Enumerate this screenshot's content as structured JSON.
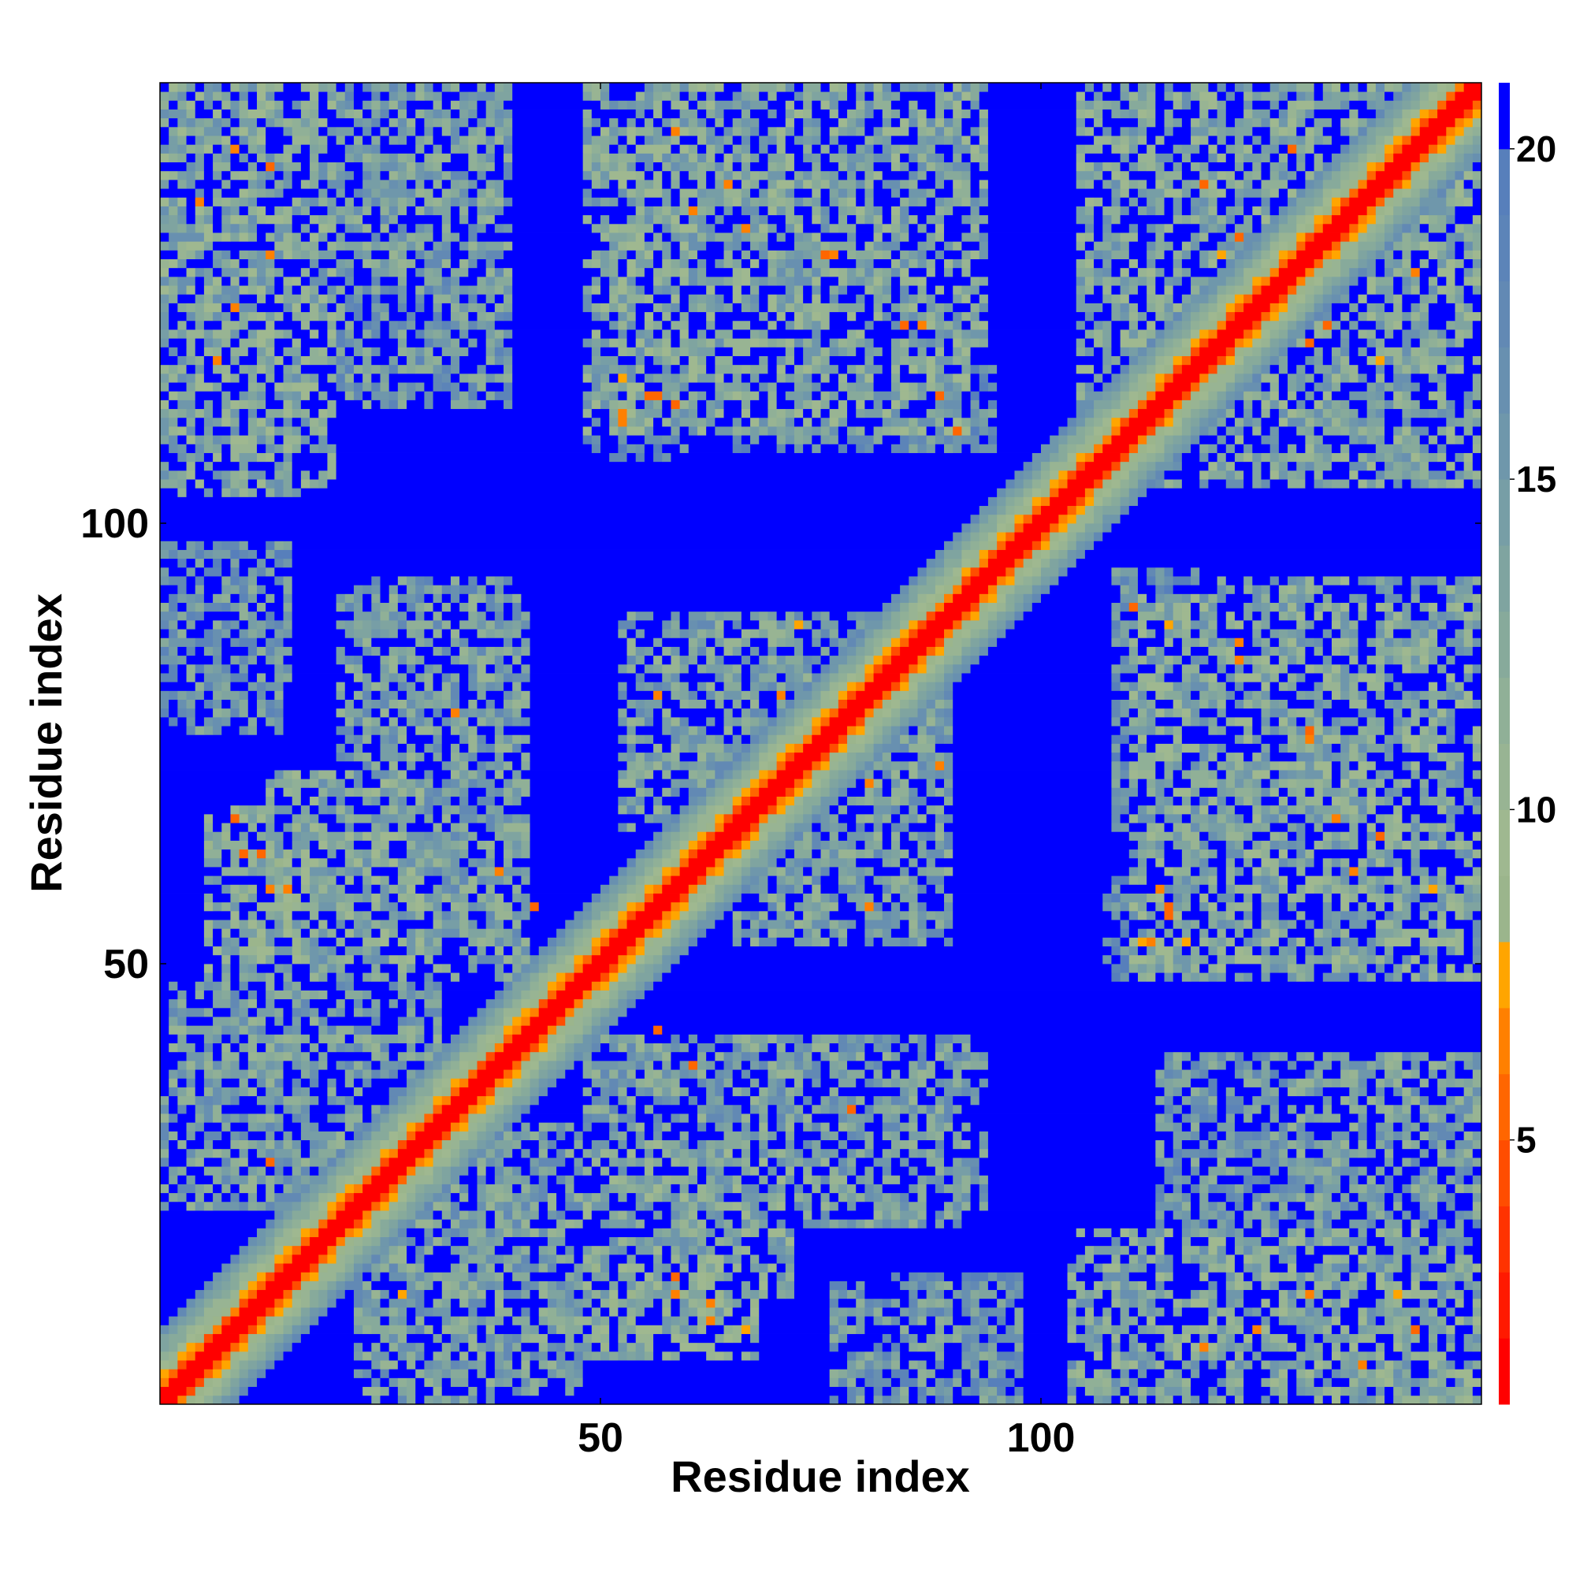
{
  "chart_data": {
    "type": "heatmap",
    "title": "",
    "xlabel": "Residue index",
    "ylabel": "Residue index",
    "n_residues": 150,
    "xlim": [
      0,
      150
    ],
    "ylim": [
      0,
      150
    ],
    "x_ticks": [
      50,
      100
    ],
    "y_ticks": [
      50,
      100
    ],
    "grid": false,
    "value_description": "pairwise residue distance",
    "color_range": [
      1,
      21
    ],
    "colorbar": {
      "ticks": [
        5,
        10,
        15,
        20
      ],
      "position": "right",
      "colors": [
        {
          "max": 2,
          "color": "#ff0000"
        },
        {
          "max": 3,
          "color": "#ff1a00"
        },
        {
          "max": 4,
          "color": "#ff3300"
        },
        {
          "max": 5,
          "color": "#ff4d00"
        },
        {
          "max": 6,
          "color": "#ff6600"
        },
        {
          "max": 7,
          "color": "#ff8000"
        },
        {
          "max": 8,
          "color": "#ffa500"
        },
        {
          "max": 9,
          "color": "#9bb58c"
        },
        {
          "max": 10,
          "color": "#9fb890"
        },
        {
          "max": 11,
          "color": "#98b493"
        },
        {
          "max": 12,
          "color": "#90b097"
        },
        {
          "max": 13,
          "color": "#87aa9b"
        },
        {
          "max": 14,
          "color": "#7fa4a0"
        },
        {
          "max": 15,
          "color": "#779ea6"
        },
        {
          "max": 16,
          "color": "#6f97ab"
        },
        {
          "max": 17,
          "color": "#6890b0"
        },
        {
          "max": 18,
          "color": "#6289b4"
        },
        {
          "max": 19,
          "color": "#5c84b8"
        },
        {
          "max": 20,
          "color": "#577fbb"
        },
        {
          "max": 99,
          "color": "#0000ff"
        }
      ]
    },
    "contact_regions": [
      {
        "x": [
          0,
          16
        ],
        "y": [
          103,
          150
        ],
        "level": 13
      },
      {
        "x": [
          20,
          40
        ],
        "y": [
          113,
          150
        ],
        "level": 14
      },
      {
        "x": [
          48,
          94
        ],
        "y": [
          120,
          150
        ],
        "level": 12
      },
      {
        "x": [
          50,
          58
        ],
        "y": [
          107,
          115
        ],
        "level": 16
      },
      {
        "x": [
          65,
          95
        ],
        "y": [
          108,
          118
        ],
        "level": 15
      },
      {
        "x": [
          0,
          15
        ],
        "y": [
          82,
          98
        ],
        "level": 15
      },
      {
        "x": [
          5,
          16
        ],
        "y": [
          48,
          68
        ],
        "level": 11
      },
      {
        "x": [
          20,
          42
        ],
        "y": [
          48,
          92
        ],
        "level": 13
      },
      {
        "x": [
          52,
          88
        ],
        "y": [
          65,
          90
        ],
        "level": 13
      },
      {
        "x": [
          0,
          25
        ],
        "y": [
          22,
          38
        ],
        "level": 13
      },
      {
        "x": [
          24,
          48
        ],
        "y": [
          1,
          32
        ],
        "level": 13
      },
      {
        "x": [
          48,
          72
        ],
        "y": [
          12,
          30
        ],
        "level": 12
      },
      {
        "x": [
          70,
          94
        ],
        "y": [
          22,
          40
        ],
        "level": 14
      },
      {
        "x": [
          48,
          68
        ],
        "y": [
          5,
          15
        ],
        "level": 11
      },
      {
        "x": [
          76,
          94
        ],
        "y": [
          0,
          14
        ],
        "level": 14
      },
      {
        "x": [
          104,
          150
        ],
        "y": [
          105,
          150
        ],
        "level": 12
      },
      {
        "x": [
          110,
          150
        ],
        "y": [
          48,
          92
        ],
        "level": 12
      },
      {
        "x": [
          108,
          118
        ],
        "y": [
          48,
          60
        ],
        "level": 16
      },
      {
        "x": [
          104,
          150
        ],
        "y": [
          0,
          20
        ],
        "level": 12
      },
      {
        "x": [
          128,
          150
        ],
        "y": [
          22,
          40
        ],
        "level": 13
      }
    ],
    "hotspots": [
      [
        12,
        140
      ],
      [
        8,
        124
      ],
      [
        6,
        118
      ],
      [
        9,
        62
      ],
      [
        12,
        58
      ],
      [
        33,
        78
      ],
      [
        38,
        60
      ],
      [
        42,
        56
      ],
      [
        60,
        135
      ],
      [
        66,
        133
      ],
      [
        75,
        130
      ],
      [
        86,
        122
      ],
      [
        90,
        110
      ],
      [
        55,
        114
      ],
      [
        58,
        113
      ],
      [
        52,
        111
      ],
      [
        56,
        80
      ],
      [
        70,
        75
      ],
      [
        80,
        70
      ],
      [
        88,
        72
      ],
      [
        58,
        14
      ],
      [
        62,
        11
      ],
      [
        66,
        8
      ],
      [
        12,
        27
      ],
      [
        31,
        25
      ],
      [
        118,
        138
      ],
      [
        122,
        132
      ],
      [
        130,
        120
      ],
      [
        138,
        118
      ],
      [
        142,
        128
      ],
      [
        114,
        88
      ],
      [
        122,
        84
      ],
      [
        130,
        76
      ],
      [
        138,
        64
      ],
      [
        144,
        58
      ],
      [
        114,
        56
      ],
      [
        112,
        52
      ],
      [
        116,
        52
      ],
      [
        130,
        12
      ],
      [
        142,
        8
      ],
      [
        136,
        4
      ]
    ]
  }
}
